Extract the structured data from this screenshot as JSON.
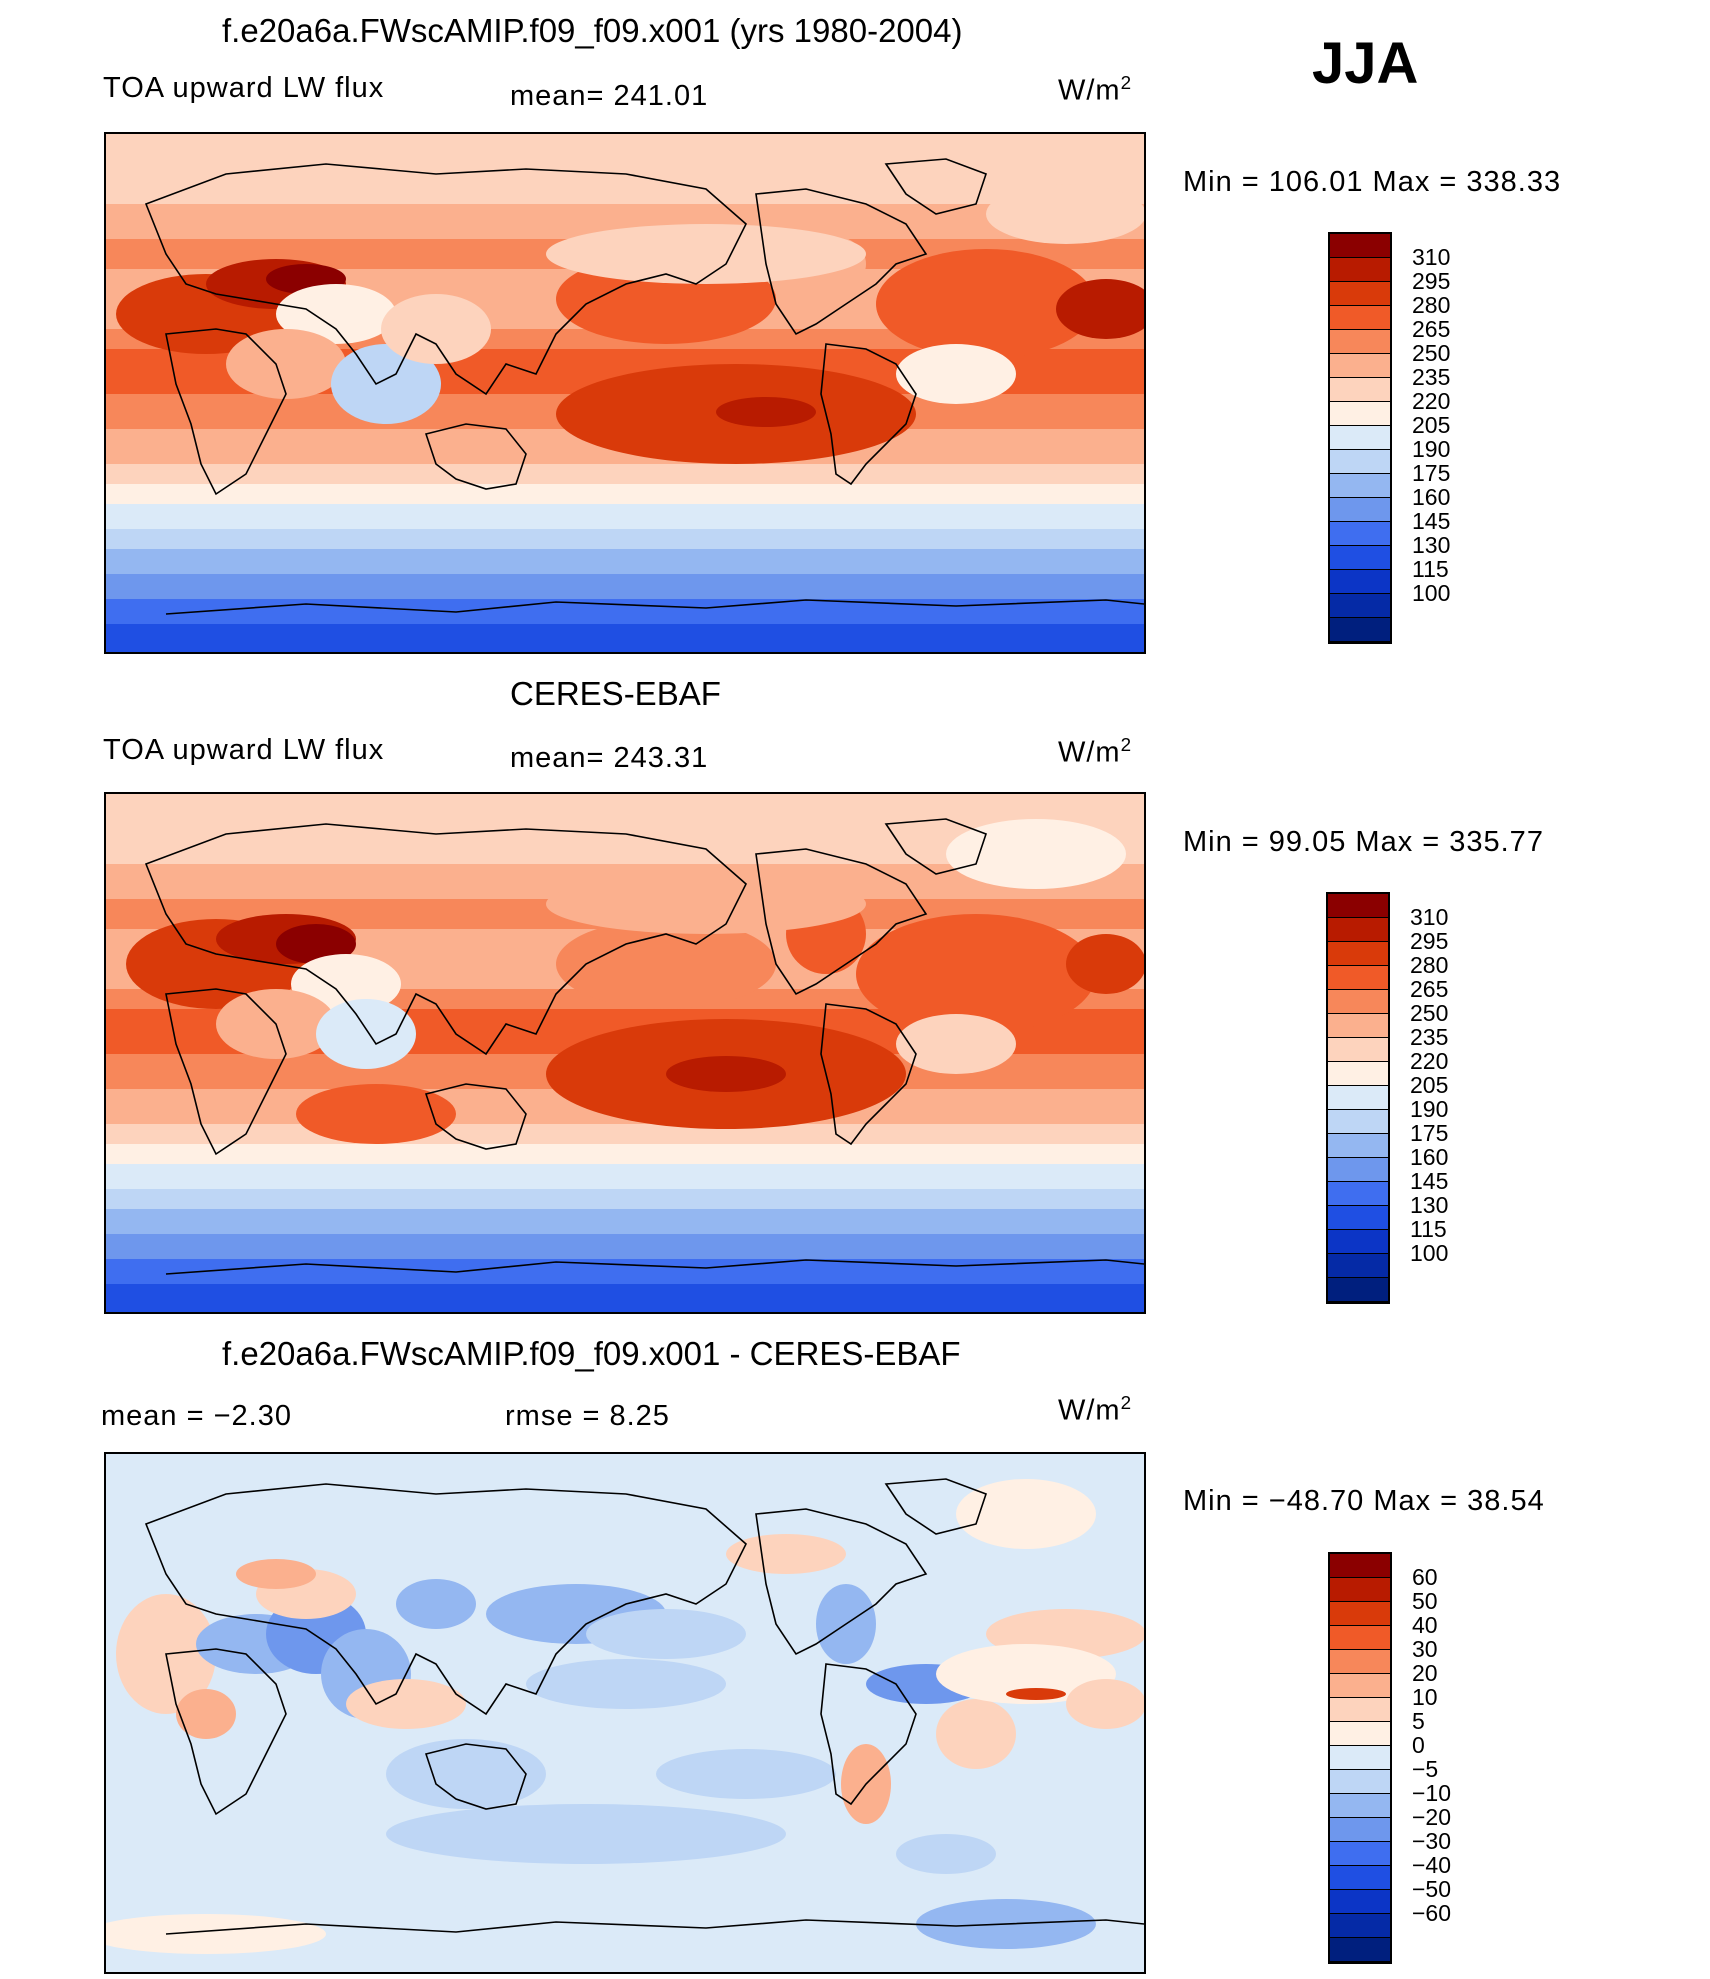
{
  "season": "JJA",
  "panels": [
    {
      "title": "f.e20a6a.FWscAMIP.f09_f09.x001 (yrs 1980-2004)",
      "left_label": "TOA upward LW flux",
      "center_label": "mean=  241.01",
      "units_base": "W/m",
      "units_exp": "2",
      "minmax": "Min  =  106.01  Max  =  338.33",
      "field": "model",
      "colorbar": {
        "colors": [
          "#8b0000",
          "#b81b00",
          "#d93a0a",
          "#f05a28",
          "#f7875a",
          "#fbb08e",
          "#fdd3bd",
          "#fff0e4",
          "#dbeaf8",
          "#bed6f5",
          "#94b7f1",
          "#6e97ed",
          "#3f6ef0",
          "#1f4fe3",
          "#0c35c6",
          "#052aa6",
          "#001f7e"
        ],
        "ticks": [
          "310",
          "295",
          "280",
          "265",
          "250",
          "235",
          "220",
          "205",
          "190",
          "175",
          "160",
          "145",
          "130",
          "115",
          "100"
        ]
      }
    },
    {
      "title": "CERES-EBAF",
      "left_label": "TOA upward LW flux",
      "center_label": "mean=  243.31",
      "units_base": "W/m",
      "units_exp": "2",
      "minmax": "Min  =    99.05  Max  =  335.77",
      "field": "obs",
      "colorbar": {
        "colors": [
          "#8b0000",
          "#b81b00",
          "#d93a0a",
          "#f05a28",
          "#f7875a",
          "#fbb08e",
          "#fdd3bd",
          "#fff0e4",
          "#dbeaf8",
          "#bed6f5",
          "#94b7f1",
          "#6e97ed",
          "#3f6ef0",
          "#1f4fe3",
          "#0c35c6",
          "#052aa6",
          "#001f7e"
        ],
        "ticks": [
          "310",
          "295",
          "280",
          "265",
          "250",
          "235",
          "220",
          "205",
          "190",
          "175",
          "160",
          "145",
          "130",
          "115",
          "100"
        ]
      }
    },
    {
      "title": "f.e20a6a.FWscAMIP.f09_f09.x001 - CERES-EBAF",
      "left_label": "mean  =    −2.30",
      "center_label": "rmse  =     8.25",
      "units_base": "W/m",
      "units_exp": "2",
      "minmax": "Min  =  −48.70  Max  =    38.54",
      "field": "diff",
      "colorbar": {
        "colors": [
          "#8b0000",
          "#b81b00",
          "#d93a0a",
          "#f05a28",
          "#f7875a",
          "#fbb08e",
          "#fdd3bd",
          "#fff0e4",
          "#dbeaf8",
          "#bed6f5",
          "#94b7f1",
          "#6e97ed",
          "#3f6ef0",
          "#1f4fe3",
          "#0c35c6",
          "#052aa6",
          "#001f7e"
        ],
        "ticks": [
          "60",
          "50",
          "40",
          "30",
          "20",
          "10",
          "5",
          "0",
          "−5",
          "−10",
          "−20",
          "−30",
          "−40",
          "−50",
          "−60"
        ]
      }
    }
  ]
}
